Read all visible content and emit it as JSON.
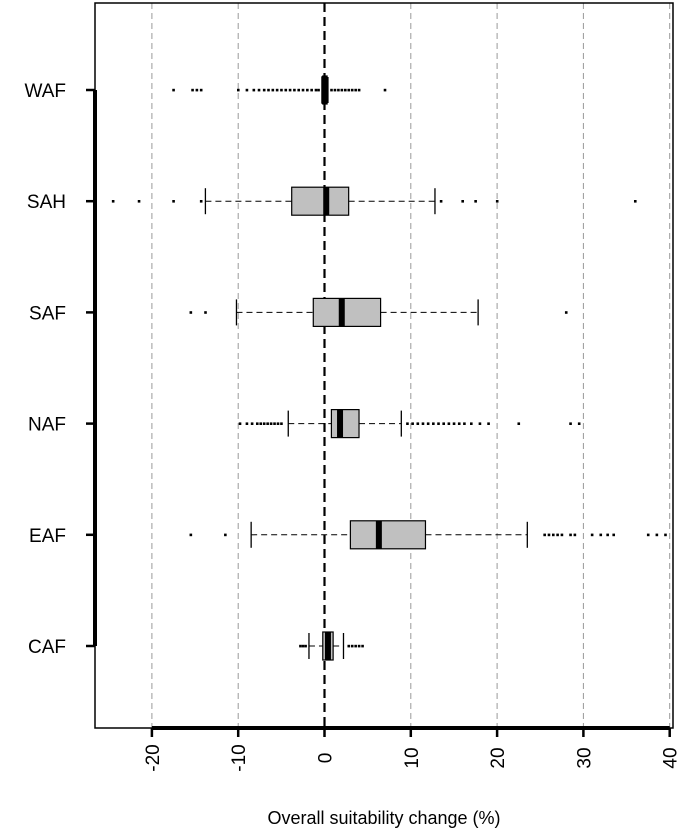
{
  "chart_data": {
    "type": "boxplot",
    "orientation": "horizontal",
    "title": "",
    "xlabel": "Overall suitability change (%)",
    "ylabel": "",
    "xlim": [
      -27,
      41
    ],
    "x_ticks": [
      -20,
      -10,
      0,
      10,
      20,
      30,
      40
    ],
    "x_tick_labels": [
      "-20",
      "-10",
      "0",
      "10",
      "20",
      "30",
      "40"
    ],
    "grid": "vertical dashed at x ticks",
    "reference_line": 0,
    "box_color": "#c0c0c0",
    "categories": [
      "WAF",
      "SAH",
      "SAF",
      "NAF",
      "EAF",
      "CAF"
    ],
    "boxes": [
      {
        "name": "WAF",
        "whisker_low": -0.3,
        "q1": -0.2,
        "median": 0.0,
        "q3": 0.3,
        "whisker_high": 0.4,
        "outliers": [
          -17.5,
          -15.3,
          -14.8,
          -14.3,
          -10.0,
          -9.0,
          -8.2,
          -7.6,
          -7.0,
          -6.5,
          -6.0,
          -5.5,
          -5.0,
          -4.5,
          -4.0,
          -3.5,
          -3.0,
          -2.5,
          -2.0,
          -1.5,
          -1.0,
          -0.7,
          0.8,
          1.2,
          1.6,
          2.0,
          2.4,
          2.8,
          3.2,
          3.6,
          4.0,
          7.0
        ]
      },
      {
        "name": "SAH",
        "whisker_low": -13.8,
        "q1": -3.8,
        "median": 0.2,
        "q3": 2.8,
        "whisker_high": 12.8,
        "outliers": [
          -24.5,
          -21.5,
          -17.5,
          -14.3,
          13.5,
          16.0,
          17.5,
          20.0,
          36.0
        ]
      },
      {
        "name": "SAF",
        "whisker_low": -10.2,
        "q1": -1.3,
        "median": 2.0,
        "q3": 6.5,
        "whisker_high": 17.8,
        "outliers": [
          -15.5,
          -13.8,
          28.0
        ]
      },
      {
        "name": "NAF",
        "whisker_low": -4.2,
        "q1": 0.8,
        "median": 1.8,
        "q3": 4.0,
        "whisker_high": 8.9,
        "outliers": [
          -9.8,
          -9.0,
          -8.4,
          -7.8,
          -7.4,
          -7.0,
          -6.6,
          -6.2,
          -5.8,
          -5.4,
          -5.0,
          9.6,
          10.2,
          10.8,
          11.4,
          12.0,
          12.6,
          13.2,
          13.8,
          14.4,
          15.0,
          15.6,
          16.2,
          17.0,
          18.0,
          19.0,
          22.5,
          28.5,
          29.5
        ]
      },
      {
        "name": "EAF",
        "whisker_low": -8.5,
        "q1": 3.0,
        "median": 6.3,
        "q3": 11.7,
        "whisker_high": 23.5,
        "outliers": [
          -15.5,
          -11.5,
          25.5,
          26.0,
          26.5,
          27.0,
          27.5,
          28.5,
          29.0,
          31.0,
          32.0,
          32.8,
          33.5,
          37.5,
          38.5,
          39.5
        ]
      },
      {
        "name": "CAF",
        "whisker_low": -1.8,
        "q1": -0.2,
        "median": 0.4,
        "q3": 1.0,
        "whisker_high": 2.2,
        "outliers": [
          -2.8,
          -2.5,
          -2.2,
          2.8,
          3.2,
          3.6,
          4.0,
          4.4
        ]
      }
    ]
  }
}
